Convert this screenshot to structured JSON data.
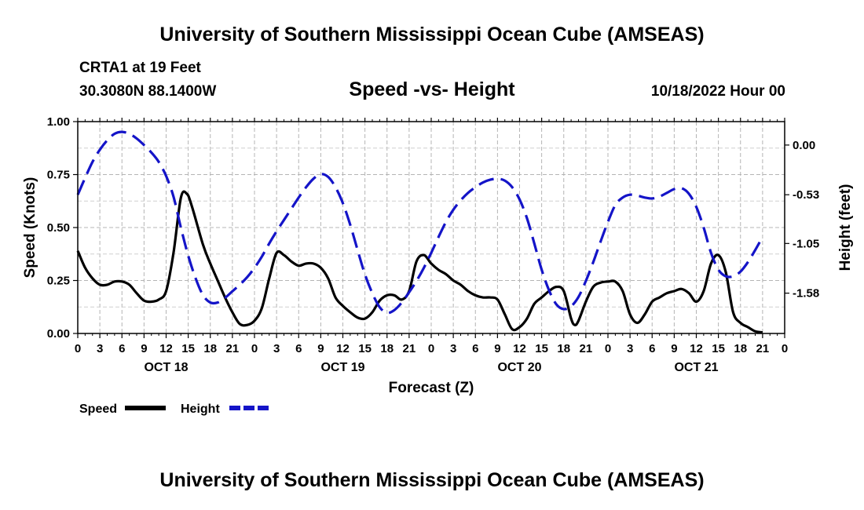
{
  "header": {
    "title": "University of Southern Mississippi Ocean Cube (AMSEAS)",
    "station": "CRTA1 at 19 Feet",
    "coords": "30.3080N  88.1400W",
    "subtitle": "Speed -vs- Height",
    "datetime": "10/18/2022 Hour 00"
  },
  "footer": {
    "title": "University of Southern Mississippi Ocean Cube (AMSEAS)"
  },
  "chart_data": {
    "type": "line",
    "title": "Speed -vs- Height",
    "xlabel": "Forecast (Z)",
    "ylabel": "Speed (Knots)",
    "y2label": "Height (feet)",
    "xlim": [
      0,
      96
    ],
    "ylim": [
      0,
      1
    ],
    "y2lim": [
      -2.01,
      0.25
    ],
    "grid": true,
    "x_tick_step_hours": 3,
    "x_tick_labels": [
      "0",
      "3",
      "6",
      "9",
      "12",
      "15",
      "18",
      "21",
      "0",
      "3",
      "6",
      "9",
      "12",
      "15",
      "18",
      "21",
      "0",
      "3",
      "6",
      "9",
      "12",
      "15",
      "18",
      "21",
      "0",
      "3",
      "6",
      "9",
      "12",
      "15",
      "18",
      "21",
      "0"
    ],
    "day_labels": [
      {
        "hour": 12,
        "label": "OCT 18"
      },
      {
        "hour": 36,
        "label": "OCT 19"
      },
      {
        "hour": 60,
        "label": "OCT 20"
      },
      {
        "hour": 84,
        "label": "OCT 21"
      }
    ],
    "y_ticks": [
      {
        "value": 0,
        "label": "0.00"
      },
      {
        "value": 0.25,
        "label": "0.25"
      },
      {
        "value": 0.5,
        "label": "0.50"
      },
      {
        "value": 0.75,
        "label": "0.75"
      },
      {
        "value": 1.0,
        "label": "1.00"
      }
    ],
    "y2_ticks": [
      {
        "value": 0.0,
        "label": "0.00"
      },
      {
        "value": -0.53,
        "label": "-0.53"
      },
      {
        "value": -1.05,
        "label": "-1.05"
      },
      {
        "value": -1.58,
        "label": "-1.58"
      }
    ],
    "series": [
      {
        "name": "Speed",
        "axis": "left",
        "color": "#000000",
        "style": "solid",
        "points": [
          [
            0,
            0.39
          ],
          [
            1,
            0.31
          ],
          [
            2,
            0.26
          ],
          [
            3,
            0.23
          ],
          [
            4,
            0.23
          ],
          [
            5,
            0.245
          ],
          [
            6,
            0.245
          ],
          [
            7,
            0.23
          ],
          [
            8,
            0.19
          ],
          [
            9,
            0.155
          ],
          [
            10,
            0.15
          ],
          [
            11,
            0.16
          ],
          [
            12,
            0.2
          ],
          [
            13,
            0.38
          ],
          [
            14,
            0.64
          ],
          [
            14.8,
            0.66
          ],
          [
            15.5,
            0.6
          ],
          [
            17,
            0.42
          ],
          [
            18,
            0.33
          ],
          [
            19,
            0.25
          ],
          [
            20,
            0.17
          ],
          [
            21,
            0.1
          ],
          [
            22,
            0.045
          ],
          [
            23,
            0.04
          ],
          [
            24,
            0.06
          ],
          [
            25,
            0.12
          ],
          [
            26,
            0.26
          ],
          [
            27,
            0.38
          ],
          [
            28,
            0.37
          ],
          [
            29,
            0.34
          ],
          [
            30,
            0.32
          ],
          [
            31,
            0.33
          ],
          [
            32,
            0.33
          ],
          [
            33,
            0.31
          ],
          [
            34,
            0.26
          ],
          [
            35,
            0.17
          ],
          [
            36,
            0.13
          ],
          [
            37,
            0.1
          ],
          [
            38,
            0.075
          ],
          [
            39,
            0.07
          ],
          [
            40,
            0.1
          ],
          [
            41,
            0.155
          ],
          [
            42,
            0.18
          ],
          [
            43,
            0.18
          ],
          [
            44,
            0.16
          ],
          [
            45,
            0.2
          ],
          [
            46,
            0.34
          ],
          [
            47,
            0.37
          ],
          [
            48,
            0.33
          ],
          [
            49,
            0.3
          ],
          [
            50,
            0.28
          ],
          [
            51,
            0.25
          ],
          [
            52,
            0.23
          ],
          [
            53,
            0.2
          ],
          [
            54,
            0.18
          ],
          [
            55,
            0.17
          ],
          [
            56,
            0.17
          ],
          [
            57,
            0.16
          ],
          [
            58,
            0.09
          ],
          [
            59,
            0.02
          ],
          [
            60,
            0.03
          ],
          [
            61,
            0.07
          ],
          [
            62,
            0.14
          ],
          [
            63,
            0.17
          ],
          [
            64,
            0.2
          ],
          [
            65,
            0.22
          ],
          [
            66,
            0.2
          ],
          [
            67,
            0.07
          ],
          [
            67.5,
            0.04
          ],
          [
            68,
            0.06
          ],
          [
            69,
            0.15
          ],
          [
            70,
            0.22
          ],
          [
            71,
            0.24
          ],
          [
            72,
            0.245
          ],
          [
            73,
            0.245
          ],
          [
            74,
            0.2
          ],
          [
            75,
            0.09
          ],
          [
            76,
            0.05
          ],
          [
            77,
            0.09
          ],
          [
            78,
            0.15
          ],
          [
            79,
            0.17
          ],
          [
            80,
            0.19
          ],
          [
            81,
            0.2
          ],
          [
            82,
            0.21
          ],
          [
            83,
            0.19
          ],
          [
            84,
            0.15
          ],
          [
            85,
            0.2
          ],
          [
            86,
            0.33
          ],
          [
            87,
            0.37
          ],
          [
            88,
            0.29
          ],
          [
            89,
            0.1
          ],
          [
            90,
            0.05
          ],
          [
            91,
            0.03
          ],
          [
            92,
            0.01
          ],
          [
            93,
            0.005
          ]
        ]
      },
      {
        "name": "Height",
        "axis": "right",
        "color": "#1414c8",
        "style": "dashed",
        "points": [
          [
            0,
            -0.53
          ],
          [
            1,
            -0.35
          ],
          [
            2,
            -0.18
          ],
          [
            3,
            -0.05
          ],
          [
            4,
            0.05
          ],
          [
            5,
            0.12
          ],
          [
            6,
            0.14
          ],
          [
            7,
            0.12
          ],
          [
            8,
            0.07
          ],
          [
            9,
            0.0
          ],
          [
            10,
            -0.08
          ],
          [
            11,
            -0.18
          ],
          [
            12,
            -0.33
          ],
          [
            13,
            -0.55
          ],
          [
            14,
            -0.88
          ],
          [
            15,
            -1.18
          ],
          [
            16,
            -1.42
          ],
          [
            17,
            -1.6
          ],
          [
            18,
            -1.68
          ],
          [
            19,
            -1.68
          ],
          [
            20,
            -1.63
          ],
          [
            21,
            -1.56
          ],
          [
            22,
            -1.49
          ],
          [
            23,
            -1.41
          ],
          [
            24,
            -1.31
          ],
          [
            25,
            -1.19
          ],
          [
            26,
            -1.05
          ],
          [
            27,
            -0.92
          ],
          [
            28,
            -0.8
          ],
          [
            29,
            -0.68
          ],
          [
            30,
            -0.56
          ],
          [
            31,
            -0.45
          ],
          [
            32,
            -0.36
          ],
          [
            33,
            -0.31
          ],
          [
            34,
            -0.34
          ],
          [
            35,
            -0.45
          ],
          [
            36,
            -0.62
          ],
          [
            37,
            -0.85
          ],
          [
            38,
            -1.12
          ],
          [
            39,
            -1.38
          ],
          [
            40,
            -1.58
          ],
          [
            41,
            -1.73
          ],
          [
            42,
            -1.79
          ],
          [
            43,
            -1.76
          ],
          [
            44,
            -1.68
          ],
          [
            45,
            -1.57
          ],
          [
            46,
            -1.45
          ],
          [
            47,
            -1.31
          ],
          [
            48,
            -1.15
          ],
          [
            49,
            -0.98
          ],
          [
            50,
            -0.82
          ],
          [
            51,
            -0.69
          ],
          [
            52,
            -0.59
          ],
          [
            53,
            -0.51
          ],
          [
            54,
            -0.45
          ],
          [
            55,
            -0.4
          ],
          [
            56,
            -0.37
          ],
          [
            57,
            -0.36
          ],
          [
            58,
            -0.38
          ],
          [
            59,
            -0.45
          ],
          [
            60,
            -0.58
          ],
          [
            61,
            -0.78
          ],
          [
            62,
            -1.05
          ],
          [
            63,
            -1.33
          ],
          [
            64,
            -1.55
          ],
          [
            65,
            -1.7
          ],
          [
            66,
            -1.75
          ],
          [
            67,
            -1.72
          ],
          [
            68,
            -1.62
          ],
          [
            69,
            -1.45
          ],
          [
            70,
            -1.25
          ],
          [
            71,
            -1.03
          ],
          [
            72,
            -0.82
          ],
          [
            73,
            -0.64
          ],
          [
            74,
            -0.56
          ],
          [
            75,
            -0.53
          ],
          [
            76,
            -0.54
          ],
          [
            77,
            -0.56
          ],
          [
            78,
            -0.57
          ],
          [
            79,
            -0.55
          ],
          [
            80,
            -0.51
          ],
          [
            81,
            -0.47
          ],
          [
            82,
            -0.46
          ],
          [
            83,
            -0.52
          ],
          [
            84,
            -0.66
          ],
          [
            85,
            -0.88
          ],
          [
            86,
            -1.15
          ],
          [
            87,
            -1.33
          ],
          [
            88,
            -1.4
          ],
          [
            89,
            -1.4
          ],
          [
            90,
            -1.35
          ],
          [
            91,
            -1.25
          ],
          [
            92,
            -1.12
          ],
          [
            93,
            -0.98
          ]
        ]
      }
    ],
    "legend": {
      "placement": "bottom-left",
      "items": [
        {
          "label": "Speed",
          "color": "#000000",
          "style": "solid"
        },
        {
          "label": "Height",
          "color": "#1414c8",
          "style": "dashed"
        }
      ]
    }
  }
}
